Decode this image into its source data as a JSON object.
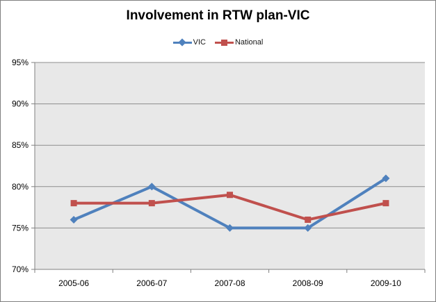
{
  "chart_data": {
    "type": "line",
    "title": "Involvement in RTW plan-VIC",
    "categories": [
      "2005-06",
      "2006-07",
      "2007-08",
      "2008-09",
      "2009-10"
    ],
    "series": [
      {
        "name": "VIC",
        "marker": "diamond",
        "color": "#4F81BD",
        "values": [
          76,
          80,
          75,
          75,
          81
        ]
      },
      {
        "name": "National",
        "marker": "square",
        "color": "#C0504D",
        "values": [
          78,
          78,
          79,
          76,
          78
        ]
      }
    ],
    "xlabel": "",
    "ylabel": "",
    "ylim": [
      70,
      95
    ],
    "ytick_step": 5,
    "ytick_labels": [
      "70%",
      "75%",
      "80%",
      "85%",
      "90%",
      "95%"
    ],
    "grid": true,
    "legend_position": "top",
    "plot_bg": "#E8E8E8",
    "grid_color": "#8C8C8C",
    "axis_color": "#7F7F7F",
    "tick_label_color": "#000000"
  }
}
